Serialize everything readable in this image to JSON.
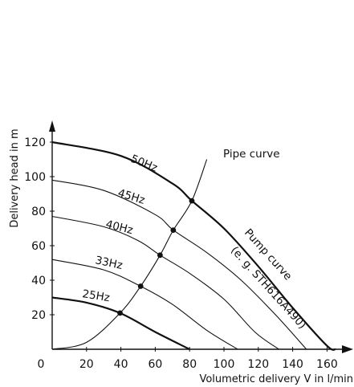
{
  "chart_data": {
    "type": "line",
    "title": "",
    "xlabel": "Volumetric delivery V in l/min",
    "ylabel": "Delivery head in m",
    "xlim": [
      0,
      170
    ],
    "ylim": [
      0,
      130
    ],
    "x_ticks": [
      0,
      20,
      40,
      60,
      80,
      100,
      120,
      140,
      160
    ],
    "y_ticks": [
      20,
      40,
      60,
      80,
      100,
      120
    ],
    "grid": false,
    "series": [
      {
        "name": "50Hz",
        "points": [
          [
            0,
            120
          ],
          [
            40,
            112
          ],
          [
            70,
            96
          ],
          [
            81.3,
            86
          ],
          [
            100,
            70
          ],
          [
            120,
            48
          ],
          [
            140,
            24
          ],
          [
            160,
            2
          ],
          [
            165,
            0
          ]
        ]
      },
      {
        "name": "45Hz",
        "points": [
          [
            0,
            98
          ],
          [
            30,
            92
          ],
          [
            60,
            78
          ],
          [
            70.5,
            69
          ],
          [
            90,
            56
          ],
          [
            110,
            40
          ],
          [
            130,
            20
          ],
          [
            148,
            0
          ]
        ]
      },
      {
        "name": "40Hz",
        "points": [
          [
            0,
            77
          ],
          [
            30,
            71
          ],
          [
            50,
            63
          ],
          [
            62.8,
            54.5
          ],
          [
            80,
            44
          ],
          [
            100,
            29
          ],
          [
            118,
            10
          ],
          [
            132,
            0
          ]
        ]
      },
      {
        "name": "33Hz",
        "points": [
          [
            0,
            52
          ],
          [
            30,
            46
          ],
          [
            51.5,
            36.5
          ],
          [
            70,
            26
          ],
          [
            90,
            11
          ],
          [
            108,
            0
          ]
        ]
      },
      {
        "name": "25Hz",
        "points": [
          [
            0,
            30
          ],
          [
            20,
            27
          ],
          [
            39.5,
            21
          ],
          [
            60,
            10
          ],
          [
            80,
            0
          ]
        ]
      },
      {
        "name": "Pipe curve",
        "points": [
          [
            0,
            0
          ],
          [
            20,
            4
          ],
          [
            39.5,
            21
          ],
          [
            51.5,
            36.5
          ],
          [
            62.8,
            54.5
          ],
          [
            70.5,
            69
          ],
          [
            81.3,
            86
          ],
          [
            90,
            110
          ]
        ]
      }
    ],
    "operating_points": [
      [
        39.5,
        21
      ],
      [
        51.5,
        36.5
      ],
      [
        62.8,
        54.5
      ],
      [
        70.5,
        69
      ],
      [
        81.3,
        86
      ]
    ],
    "annotations": {
      "pipe_curve": "Pipe curve",
      "pump_curve_line1": "Pump curve",
      "pump_curve_line2": "(e. g. STH616A490)"
    },
    "colors": {
      "line": "#111111",
      "background": "#ffffff"
    }
  }
}
